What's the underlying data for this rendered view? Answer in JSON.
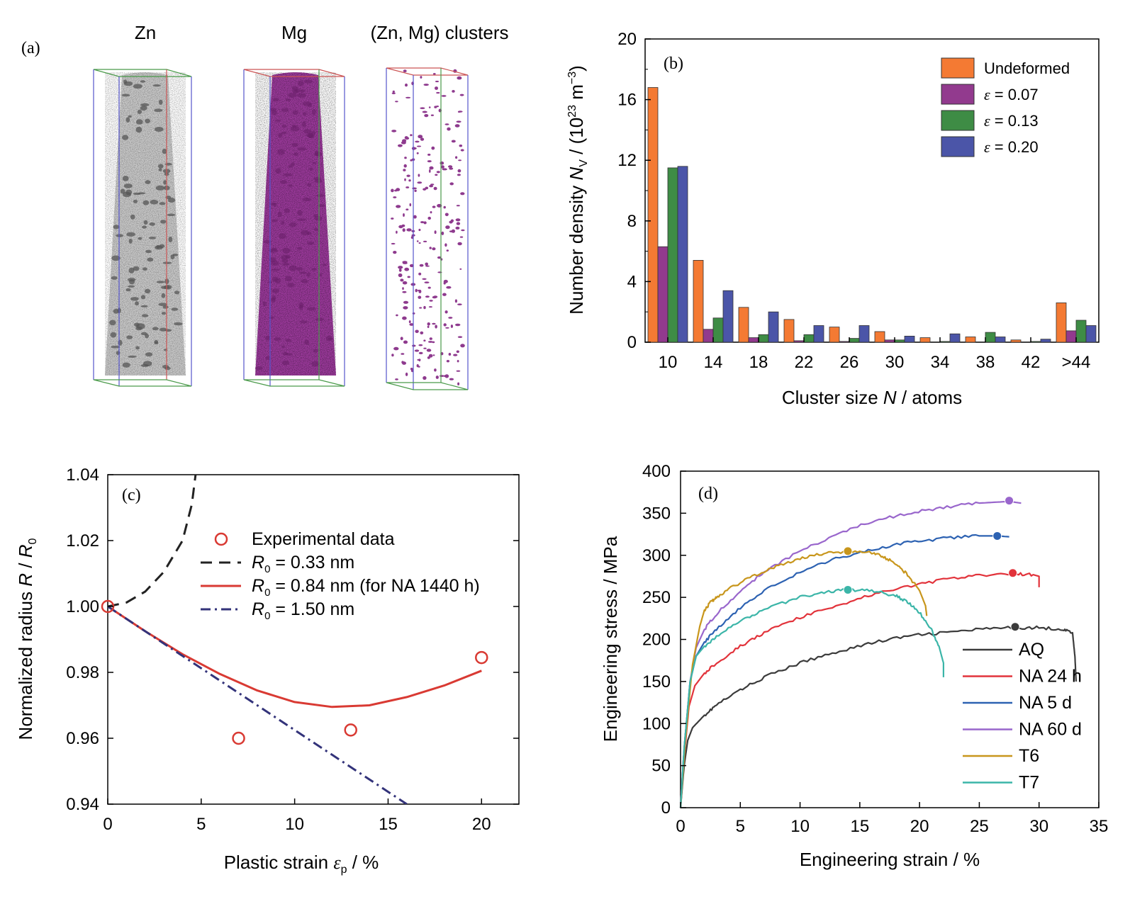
{
  "chart_data": [
    {
      "panel": "(a)",
      "type": "other",
      "columns": [
        "Zn",
        "Mg",
        "(Zn, Mg) clusters"
      ]
    },
    {
      "panel": "(b)",
      "type": "bar",
      "categories": [
        "10",
        "14",
        "18",
        "22",
        "26",
        "30",
        "34",
        "38",
        "42",
        ">44"
      ],
      "series": [
        {
          "name": "Undeformed",
          "color": "#f47a33",
          "values": [
            16.8,
            5.4,
            2.3,
            1.5,
            1.0,
            0.7,
            0.3,
            0.35,
            0.15,
            2.6
          ]
        },
        {
          "name_sym": "ε",
          "name_rest": " = 0.07",
          "color": "#923a8e",
          "values": [
            6.3,
            0.85,
            0.3,
            0.1,
            0.05,
            0.15,
            0.0,
            0.0,
            0.0,
            0.75
          ]
        },
        {
          "name_sym": "ε",
          "name_rest": " = 0.13",
          "color": "#3e8c45",
          "values": [
            11.5,
            1.6,
            0.5,
            0.5,
            0.25,
            0.15,
            0.05,
            0.65,
            0.05,
            1.45
          ]
        },
        {
          "name_sym": "ε",
          "name_rest": " = 0.20",
          "color": "#4b55a8",
          "values": [
            11.6,
            3.4,
            2.0,
            1.1,
            1.1,
            0.4,
            0.55,
            0.35,
            0.2,
            1.1
          ]
        }
      ],
      "ylim": [
        0,
        20
      ],
      "yticks": [
        "0",
        "4",
        "8",
        "12",
        "16",
        "20"
      ],
      "xlabel": {
        "pre": "Cluster size ",
        "sym": "N",
        "post": " / atoms"
      },
      "ylabel": {
        "pre": "Number density ",
        "sym": "N",
        "sub": "V",
        "mid": " / (10",
        "sup": "23",
        "post1": " m",
        "sup2": "−3",
        "post2": ")"
      },
      "legend": "top-right"
    },
    {
      "panel": "(c)",
      "type": "line",
      "xlim": [
        0,
        22
      ],
      "ylim": [
        0.94,
        1.04
      ],
      "xticks": [
        "0",
        "5",
        "10",
        "15",
        "20"
      ],
      "yticks": [
        "0.94",
        "0.96",
        "0.98",
        "1.00",
        "1.02",
        "1.04"
      ],
      "xlabel": {
        "pre": "Plastic strain ",
        "sym": "ε",
        "sub": "p",
        "post": " / %"
      },
      "ylabel": {
        "pre": "Normalized radius ",
        "sym": "R",
        "mid": " / ",
        "sym2": "R",
        "sub": "0"
      },
      "scatter": {
        "name": "Experimental data",
        "color": "#d93a33",
        "x": [
          0,
          7,
          13,
          20
        ],
        "y": [
          1.0,
          0.96,
          0.9625,
          0.9845
        ]
      },
      "series": [
        {
          "sym": "R",
          "sub": "0",
          "rest": " = 0.33 nm",
          "color": "#222222",
          "dash": "dash",
          "x": [
            0,
            1,
            2,
            3,
            4,
            4.5,
            4.7
          ],
          "y": [
            1.0,
            1.0012,
            1.0045,
            1.0105,
            1.02,
            1.031,
            1.04
          ]
        },
        {
          "sym": "R",
          "sub": "0",
          "rest": " = 0.84 nm (for NA 1440 h)",
          "color": "#d93a33",
          "dash": "solid",
          "x": [
            0,
            2,
            4,
            6,
            8,
            10,
            12,
            14,
            16,
            18,
            20
          ],
          "y": [
            1.0,
            0.9925,
            0.9855,
            0.9795,
            0.9745,
            0.971,
            0.9695,
            0.97,
            0.9725,
            0.976,
            0.9805
          ]
        },
        {
          "sym": "R",
          "sub": "0",
          "rest": " = 1.50 nm",
          "color": "#33337a",
          "dash": "dashdot",
          "x": [
            0,
            2,
            4,
            6,
            8,
            10,
            12,
            14,
            16
          ],
          "y": [
            1.0,
            0.9925,
            0.985,
            0.9775,
            0.97,
            0.9625,
            0.955,
            0.9475,
            0.94
          ]
        }
      ]
    },
    {
      "panel": "(d)",
      "type": "line",
      "xlim": [
        0,
        35
      ],
      "ylim": [
        0,
        400
      ],
      "xticks": [
        "0",
        "5",
        "10",
        "15",
        "20",
        "25",
        "30",
        "35"
      ],
      "yticks": [
        "0",
        "50",
        "100",
        "150",
        "200",
        "250",
        "300",
        "350",
        "400"
      ],
      "xlabel": "Engineering strain / %",
      "ylabel": "Engineering stress / MPa",
      "legend": "bottom-right",
      "series": [
        {
          "name": "AQ",
          "color": "#3b3b3b",
          "marker": [
            28,
            215
          ],
          "x": [
            0,
            0.3,
            0.6,
            1,
            2,
            3,
            5,
            7,
            10,
            13,
            16,
            19,
            22,
            25,
            28,
            30,
            32,
            32.8,
            33,
            33.1
          ],
          "y": [
            0,
            50,
            80,
            95,
            110,
            122,
            140,
            155,
            172,
            185,
            196,
            204,
            208,
            212,
            214,
            214,
            212,
            208,
            180,
            150
          ]
        },
        {
          "name": "NA 24 h",
          "color": "#e2333b",
          "marker": [
            27.8,
            279
          ],
          "x": [
            0,
            0.3,
            0.7,
            1.2,
            2,
            3,
            5,
            7,
            10,
            13,
            16,
            19,
            22,
            25,
            28,
            29.5,
            30,
            30
          ],
          "y": [
            0,
            60,
            120,
            145,
            160,
            172,
            192,
            208,
            226,
            240,
            253,
            263,
            271,
            276,
            278,
            277,
            275,
            262
          ]
        },
        {
          "name": "NA 5 d",
          "color": "#2d62b2",
          "marker": [
            26.5,
            323
          ],
          "x": [
            0,
            0.3,
            0.8,
            1.3,
            2,
            3,
            5,
            7,
            10,
            13,
            16,
            19,
            22,
            25,
            26.5,
            27.5
          ],
          "y": [
            0,
            70,
            150,
            180,
            197,
            212,
            238,
            258,
            280,
            296,
            307,
            315,
            320,
            323,
            323,
            322
          ]
        },
        {
          "name": "NA 60 d",
          "color": "#9966cc",
          "marker": [
            27.5,
            365
          ],
          "x": [
            0,
            0.3,
            0.8,
            1.3,
            2,
            3,
            5,
            7,
            10,
            13,
            16,
            19,
            22,
            25,
            27.5,
            28.5
          ],
          "y": [
            0,
            70,
            150,
            190,
            212,
            230,
            258,
            280,
            305,
            325,
            340,
            350,
            357,
            362,
            364,
            362
          ]
        },
        {
          "name": "T6",
          "color": "#c8961c",
          "marker": [
            14,
            305
          ],
          "x": [
            0,
            0.4,
            1,
            1.6,
            2,
            2.5,
            3,
            4,
            6,
            8,
            10,
            12,
            14,
            16,
            17,
            18,
            19,
            20,
            20.5,
            20.6
          ],
          "y": [
            0,
            80,
            170,
            215,
            235,
            244,
            250,
            260,
            275,
            287,
            296,
            302,
            305,
            303,
            298,
            290,
            277,
            258,
            240,
            228
          ]
        },
        {
          "name": "T7",
          "color": "#3bb5a8",
          "marker": [
            14,
            259
          ],
          "x": [
            0,
            0.3,
            0.8,
            1.3,
            2,
            3,
            5,
            7,
            10,
            12,
            14,
            16,
            18,
            19,
            20,
            21,
            21.7,
            22,
            22
          ],
          "y": [
            0,
            70,
            150,
            180,
            192,
            203,
            222,
            236,
            250,
            256,
            259,
            258,
            252,
            244,
            232,
            212,
            188,
            172,
            155
          ]
        }
      ]
    }
  ]
}
